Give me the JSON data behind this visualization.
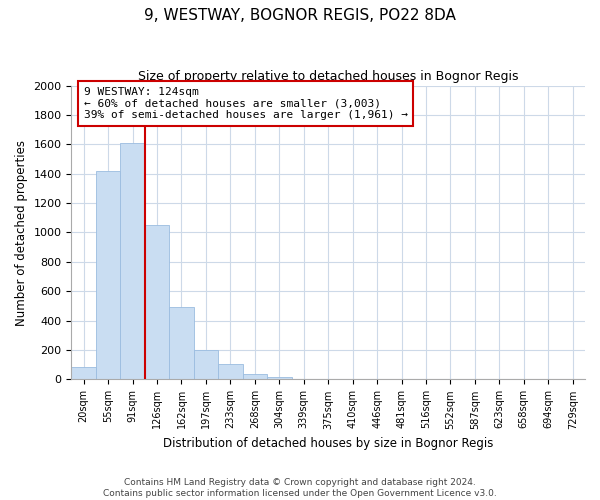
{
  "title": "9, WESTWAY, BOGNOR REGIS, PO22 8DA",
  "subtitle": "Size of property relative to detached houses in Bognor Regis",
  "xlabel": "Distribution of detached houses by size in Bognor Regis",
  "ylabel": "Number of detached properties",
  "bar_labels": [
    "20sqm",
    "55sqm",
    "91sqm",
    "126sqm",
    "162sqm",
    "197sqm",
    "233sqm",
    "268sqm",
    "304sqm",
    "339sqm",
    "375sqm",
    "410sqm",
    "446sqm",
    "481sqm",
    "516sqm",
    "552sqm",
    "587sqm",
    "623sqm",
    "658sqm",
    "694sqm",
    "729sqm"
  ],
  "bar_values": [
    85,
    1420,
    1610,
    1050,
    490,
    200,
    105,
    40,
    15,
    0,
    0,
    0,
    0,
    0,
    0,
    0,
    0,
    0,
    0,
    0,
    0
  ],
  "bar_color": "#c9ddf2",
  "bar_edge_color": "#9bbce0",
  "vline_color": "#cc0000",
  "ylim": [
    0,
    2000
  ],
  "yticks": [
    0,
    200,
    400,
    600,
    800,
    1000,
    1200,
    1400,
    1600,
    1800,
    2000
  ],
  "annotation_title": "9 WESTWAY: 124sqm",
  "annotation_line1": "← 60% of detached houses are smaller (3,003)",
  "annotation_line2": "39% of semi-detached houses are larger (1,961) →",
  "annotation_box_color": "#ffffff",
  "annotation_border_color": "#cc0000",
  "footer_line1": "Contains HM Land Registry data © Crown copyright and database right 2024.",
  "footer_line2": "Contains public sector information licensed under the Open Government Licence v3.0.",
  "background_color": "#ffffff",
  "grid_color": "#cdd9e8"
}
